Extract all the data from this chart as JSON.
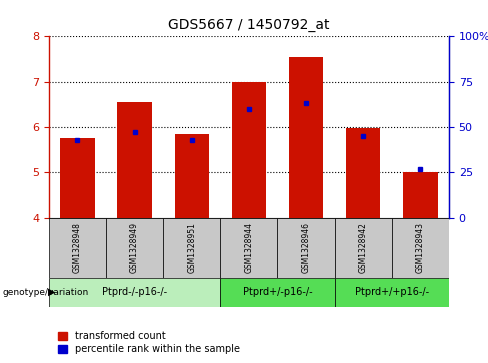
{
  "title": "GDS5667 / 1450792_at",
  "samples": [
    "GSM1328948",
    "GSM1328949",
    "GSM1328951",
    "GSM1328944",
    "GSM1328946",
    "GSM1328942",
    "GSM1328943"
  ],
  "transformed_counts": [
    5.75,
    6.55,
    5.85,
    7.0,
    7.55,
    5.98,
    5.02
  ],
  "percentile_ranks": [
    43,
    47,
    43,
    60,
    63,
    45,
    27
  ],
  "ylim_left": [
    4,
    8
  ],
  "ylim_right": [
    0,
    100
  ],
  "yticks_left": [
    4,
    5,
    6,
    7,
    8
  ],
  "yticks_right": [
    0,
    25,
    50,
    75,
    100
  ],
  "bar_color": "#cc1100",
  "dot_color": "#0000cc",
  "bar_width": 0.6,
  "group_configs": [
    {
      "indices": [
        0,
        1,
        2
      ],
      "color": "#bbeebb",
      "label": "Ptprd-/-p16-/-"
    },
    {
      "indices": [
        3,
        4
      ],
      "color": "#55dd55",
      "label": "Ptprd+/-p16-/-"
    },
    {
      "indices": [
        5,
        6
      ],
      "color": "#55dd55",
      "label": "Ptprd+/+p16-/-"
    }
  ],
  "legend_red": "transformed count",
  "legend_blue": "percentile rank within the sample",
  "axis_left_color": "#cc1100",
  "axis_right_color": "#0000cc",
  "grid_color": "#000000",
  "background_color": "#ffffff",
  "sample_box_color": "#c8c8c8"
}
